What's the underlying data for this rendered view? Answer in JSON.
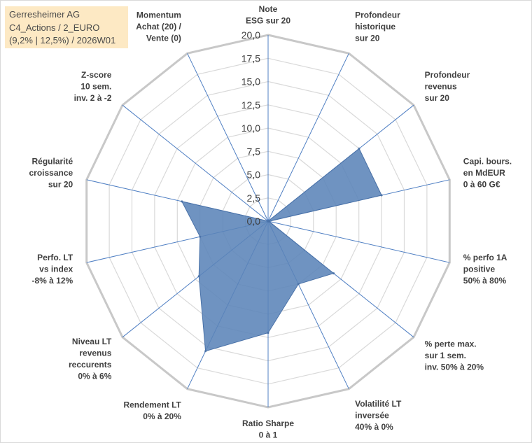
{
  "title": {
    "line1": "Gerresheimer AG",
    "line2": "C4_Actions / 2_EURO",
    "line3": "(9,2% | 12,5%) / 2026W01"
  },
  "chart_data": {
    "type": "radar",
    "r_range": [
      0,
      20
    ],
    "r_ticks": [
      "0,0",
      "2,5",
      "5,0",
      "7,5",
      "10,0",
      "12,5",
      "15,0",
      "17,5",
      "20,0"
    ],
    "grid": true,
    "fill_color": "#5b84b8",
    "categories": [
      [
        "Note",
        "ESG sur 20"
      ],
      [
        "Profondeur",
        "historique",
        "sur 20"
      ],
      [
        "Profondeur",
        "revenus",
        "sur 20"
      ],
      [
        "Capi. bours.",
        "en MdEUR",
        "0 à 60 G€"
      ],
      [
        "% perfo 1A",
        "positive",
        "50% à 80%"
      ],
      [
        "% perte max.",
        "sur 1 sem.",
        "inv. 50% à 20%"
      ],
      [
        "Volatilité LT",
        "inversée",
        "40% à 0%"
      ],
      [
        "Ratio Sharpe",
        "0 à 1"
      ],
      [
        "Rendement LT",
        "0% à 20%"
      ],
      [
        "Niveau LT",
        "revenus",
        "reccurents",
        "0% à 6%"
      ],
      [
        "Perfo. LT",
        "vs index",
        "-8% à 12%"
      ],
      [
        "Régularité",
        "croissance",
        "sur 20"
      ],
      [
        "Z-score",
        "10 sem.",
        "inv. 2 à -2"
      ],
      [
        "Momentum",
        "Achat (20) /",
        "Vente (0)"
      ]
    ],
    "values": [
      0,
      0,
      12.5,
      12.5,
      0.1,
      9.0,
      7.5,
      12.0,
      15.5,
      9.5,
      7.5,
      9.5,
      0,
      0
    ]
  }
}
